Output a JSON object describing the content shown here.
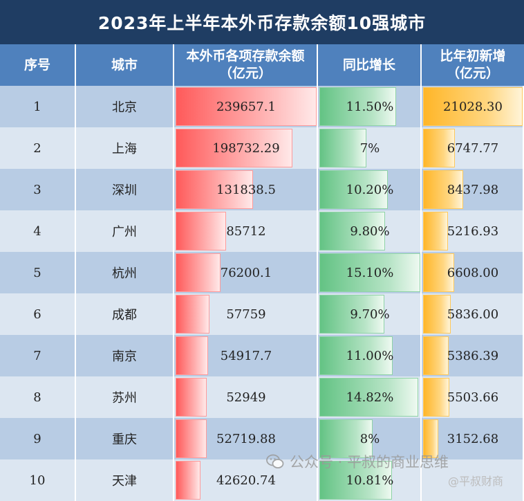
{
  "title": "2023年上半年本外币存款余额10强城市",
  "header": {
    "rank": "序号",
    "city": "城市",
    "deposit_line1": "本外币各项存款余额",
    "deposit_line2": "（亿元）",
    "growth": "同比增长",
    "increase_line1": "比年初新增",
    "increase_line2": "（亿元）"
  },
  "chart_data": {
    "type": "table",
    "columns": [
      "序号",
      "城市",
      "本外币各项存款余额（亿元）",
      "同比增长",
      "比年初新增（亿元）"
    ],
    "rows": [
      {
        "rank": "1",
        "city": "北京",
        "deposit": 239657.1,
        "deposit_label": "239657.1",
        "growth": 11.5,
        "growth_label": "11.50%",
        "increase": 21028.3,
        "increase_label": "21028.30"
      },
      {
        "rank": "2",
        "city": "上海",
        "deposit": 198732.29,
        "deposit_label": "198732.29",
        "growth": 7,
        "growth_label": "7%",
        "increase": 6747.77,
        "increase_label": "6747.77"
      },
      {
        "rank": "3",
        "city": "深圳",
        "deposit": 131838.5,
        "deposit_label": "131838.5",
        "growth": 10.2,
        "growth_label": "10.20%",
        "increase": 8437.98,
        "increase_label": "8437.98"
      },
      {
        "rank": "4",
        "city": "广州",
        "deposit": 85712,
        "deposit_label": "85712",
        "growth": 9.8,
        "growth_label": "9.80%",
        "increase": 5216.93,
        "increase_label": "5216.93"
      },
      {
        "rank": "5",
        "city": "杭州",
        "deposit": 76200.1,
        "deposit_label": "76200.1",
        "growth": 15.1,
        "growth_label": "15.10%",
        "increase": 6608.0,
        "increase_label": "6608.00"
      },
      {
        "rank": "6",
        "city": "成都",
        "deposit": 57759,
        "deposit_label": "57759",
        "growth": 9.7,
        "growth_label": "9.70%",
        "increase": 5836.0,
        "increase_label": "5836.00"
      },
      {
        "rank": "7",
        "city": "南京",
        "deposit": 54917.7,
        "deposit_label": "54917.7",
        "growth": 11.0,
        "growth_label": "11.00%",
        "increase": 5386.39,
        "increase_label": "5386.39"
      },
      {
        "rank": "8",
        "city": "苏州",
        "deposit": 52949,
        "deposit_label": "52949",
        "growth": 14.82,
        "growth_label": "14.82%",
        "increase": 5503.66,
        "increase_label": "5503.66"
      },
      {
        "rank": "9",
        "city": "重庆",
        "deposit": 52719.88,
        "deposit_label": "52719.88",
        "growth": 8,
        "growth_label": "8%",
        "increase": 3152.68,
        "increase_label": "3152.68"
      },
      {
        "rank": "10",
        "city": "天津",
        "deposit": 42620.74,
        "deposit_label": "42620.74",
        "growth": 10.81,
        "growth_label": "10.81%",
        "increase": 0,
        "increase_label": ""
      }
    ],
    "bar_colors": {
      "deposit": "#ff5a5a",
      "growth": "#63c384",
      "increase": "#ffb628"
    }
  },
  "watermark": {
    "text": "公众号 · 平叔的商业思维",
    "icon": "wechat-icon",
    "corner_text": "@平叔财商"
  }
}
